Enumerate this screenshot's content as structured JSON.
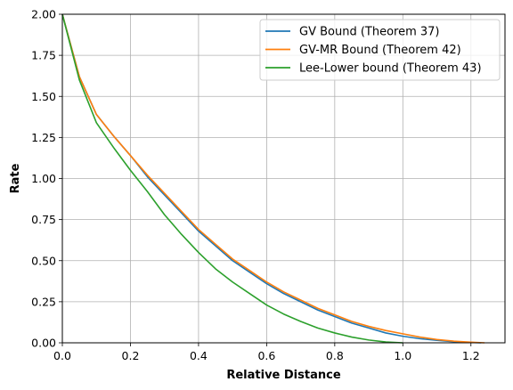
{
  "chart_data": {
    "type": "line",
    "xlabel": "Relative Distance",
    "ylabel": "Rate",
    "xlim": [
      0.0,
      1.3
    ],
    "ylim": [
      0.0,
      2.0
    ],
    "xticks": [
      0.0,
      0.2,
      0.4,
      0.6,
      0.8,
      1.0,
      1.2
    ],
    "xtick_labels": [
      "0.0",
      "0.2",
      "0.4",
      "0.6",
      "0.8",
      "1.0",
      "1.2"
    ],
    "yticks": [
      0.0,
      0.25,
      0.5,
      0.75,
      1.0,
      1.25,
      1.5,
      1.75,
      2.0
    ],
    "ytick_labels": [
      "0.00",
      "0.25",
      "0.50",
      "0.75",
      "1.00",
      "1.25",
      "1.50",
      "1.75",
      "2.00"
    ],
    "grid": true,
    "legend_position": "top-right",
    "series": [
      {
        "name": "GV Bound (Theorem 37)",
        "color": "#1f77b4",
        "x": [
          0.0,
          0.05,
          0.1,
          0.15,
          0.2,
          0.25,
          0.3,
          0.35,
          0.4,
          0.45,
          0.5,
          0.55,
          0.6,
          0.65,
          0.7,
          0.75,
          0.8,
          0.85,
          0.9,
          0.95,
          1.0,
          1.05,
          1.1,
          1.15,
          1.2,
          1.23
        ],
        "y": [
          2.0,
          1.62,
          1.39,
          1.26,
          1.14,
          1.01,
          0.9,
          0.79,
          0.68,
          0.59,
          0.5,
          0.43,
          0.36,
          0.3,
          0.25,
          0.2,
          0.16,
          0.12,
          0.09,
          0.06,
          0.04,
          0.025,
          0.015,
          0.007,
          0.002,
          0.0
        ]
      },
      {
        "name": "GV-MR Bound (Theorem 42)",
        "color": "#ff7f0e",
        "x": [
          0.0,
          0.05,
          0.1,
          0.15,
          0.2,
          0.25,
          0.3,
          0.35,
          0.4,
          0.45,
          0.5,
          0.55,
          0.6,
          0.65,
          0.7,
          0.75,
          0.8,
          0.85,
          0.9,
          0.95,
          1.0,
          1.05,
          1.1,
          1.15,
          1.2,
          1.24
        ],
        "y": [
          2.0,
          1.62,
          1.39,
          1.26,
          1.14,
          1.02,
          0.91,
          0.8,
          0.69,
          0.6,
          0.51,
          0.44,
          0.37,
          0.31,
          0.26,
          0.21,
          0.17,
          0.13,
          0.1,
          0.075,
          0.055,
          0.035,
          0.02,
          0.01,
          0.004,
          0.0
        ]
      },
      {
        "name": "Lee-Lower bound (Theorem 43)",
        "color": "#2ca02c",
        "x": [
          0.0,
          0.05,
          0.1,
          0.15,
          0.2,
          0.25,
          0.3,
          0.35,
          0.4,
          0.45,
          0.5,
          0.55,
          0.6,
          0.65,
          0.7,
          0.75,
          0.8,
          0.85,
          0.9,
          0.95,
          1.0
        ],
        "y": [
          2.0,
          1.6,
          1.34,
          1.19,
          1.05,
          0.92,
          0.78,
          0.66,
          0.55,
          0.45,
          0.37,
          0.3,
          0.23,
          0.175,
          0.13,
          0.09,
          0.06,
          0.035,
          0.017,
          0.005,
          0.0
        ]
      }
    ]
  }
}
